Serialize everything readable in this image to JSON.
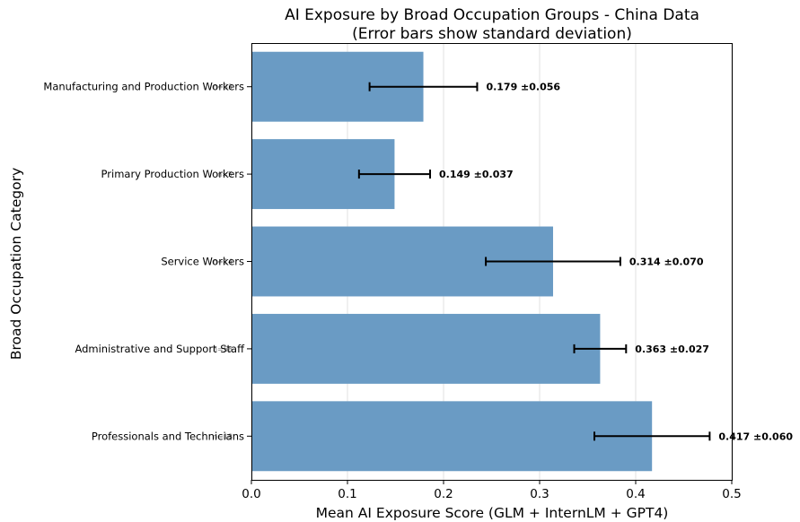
{
  "chart_data": {
    "type": "bar",
    "orientation": "horizontal",
    "title": "AI Exposure by Broad Occupation Groups - China Data",
    "subtitle": "(Error bars show standard deviation)",
    "xlabel": "Mean AI Exposure Score (GLM + InternLM + GPT4)",
    "ylabel": "Broad Occupation Category",
    "xlim": [
      0,
      0.5
    ],
    "xticks": [
      0.0,
      0.1,
      0.2,
      0.3,
      0.4,
      0.5
    ],
    "xtick_labels": [
      "0.0",
      "0.1",
      "0.2",
      "0.3",
      "0.4",
      "0.5"
    ],
    "grid": "x",
    "categories": [
      "Manufacturing and Production Workers",
      "Primary Production Workers",
      "Service Workers",
      "Administrative and Support Staff",
      "Professionals and Technicians"
    ],
    "n_labels": [
      "n=33",
      "n=5",
      "n=14",
      "n=58",
      "n=18"
    ],
    "values": [
      0.179,
      0.149,
      0.314,
      0.363,
      0.417
    ],
    "errors": [
      0.056,
      0.037,
      0.07,
      0.027,
      0.06
    ],
    "data_labels": [
      "0.179 ±0.056",
      "0.149 ±0.037",
      "0.314 ±0.070",
      "0.363 ±0.027",
      "0.417 ±0.060"
    ],
    "bar_color": "#6a9bc4"
  }
}
